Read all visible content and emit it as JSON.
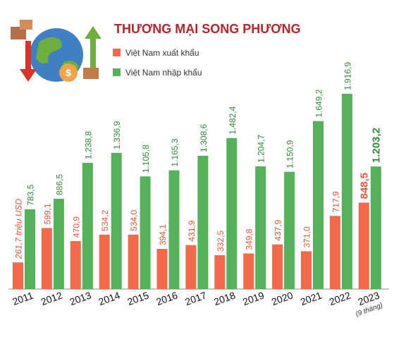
{
  "chart_data": {
    "type": "bar",
    "title": "THƯƠNG MẠI SONG PHƯƠNG",
    "categories": [
      "2011",
      "2012",
      "2013",
      "2014",
      "2015",
      "2016",
      "2017",
      "2018",
      "2019",
      "2020",
      "2021",
      "2022",
      "2023"
    ],
    "annotation": "(9 tháng)",
    "series": [
      {
        "name": "Việt Nam xuất khẩu",
        "color": "#f26a4b",
        "values": [
          261.7,
          599.1,
          470.9,
          534.2,
          534.0,
          394.1,
          431.9,
          332.5,
          349.8,
          437.9,
          371.0,
          717.9,
          848.5
        ],
        "value_labels": [
          "261,7 triệu USD",
          "599,1",
          "470,9",
          "534,2",
          "534,0",
          "394,1",
          "431,9",
          "332,5",
          "349,8",
          "437,9",
          "371,0",
          "717,9",
          "848,5"
        ]
      },
      {
        "name": "Việt Nam nhập khẩu",
        "color": "#55b25a",
        "values": [
          783.5,
          886.5,
          1238.8,
          1336.9,
          1105.8,
          1165.3,
          1308.6,
          1482.4,
          1204.7,
          1150.9,
          1649.2,
          1916.9,
          1203.2
        ],
        "value_labels": [
          "783,5",
          "886,5",
          "1.238,8",
          "1.336,9",
          "1.105,8",
          "1.165,3",
          "1.308,6",
          "1.482,4",
          "1.204,7",
          "1.150,9",
          "1.649,2",
          "1.916,9",
          "1.203,2"
        ]
      }
    ]
  }
}
